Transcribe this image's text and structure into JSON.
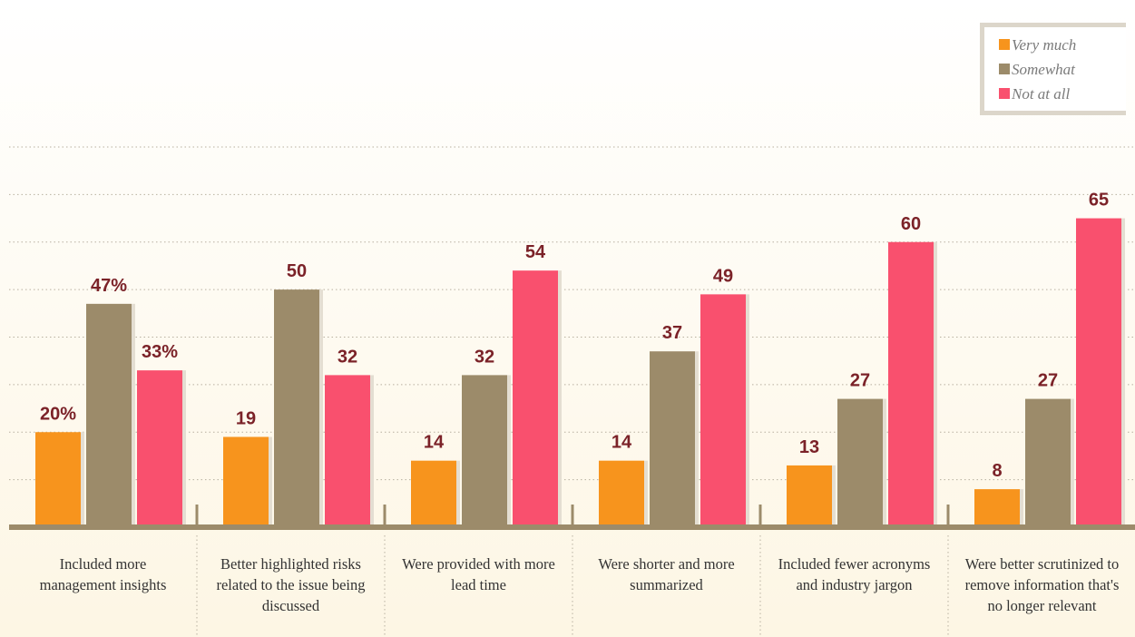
{
  "chart_data": {
    "type": "bar",
    "categories": [
      "Included more management insights",
      "Better highlighted risks related to the issue being discussed",
      "Were provided with more lead time",
      "Were shorter and more summarized",
      "Included fewer acronyms and industry jargon",
      "Were better scrutinized to remove information that's no longer relevant"
    ],
    "series": [
      {
        "name": "Very much",
        "color": "#f7941d",
        "values": [
          20,
          19,
          14,
          14,
          13,
          8
        ],
        "value_labels": [
          "20%",
          "19",
          "14",
          "14",
          "13",
          "8"
        ]
      },
      {
        "name": "Somewhat",
        "color": "#9c8b6a",
        "values": [
          47,
          50,
          32,
          37,
          27,
          27
        ],
        "value_labels": [
          "47%",
          "50",
          "32",
          "37",
          "27",
          "27"
        ]
      },
      {
        "name": "Not at all",
        "color": "#f9506e",
        "values": [
          33,
          32,
          54,
          49,
          60,
          65
        ],
        "value_labels": [
          "33%",
          "32",
          "54",
          "49",
          "60",
          "65"
        ]
      }
    ],
    "ylim": [
      0,
      80
    ],
    "yticks": [
      10,
      20,
      30,
      40,
      50,
      60,
      70,
      80
    ],
    "grid": true,
    "legend": "top-right"
  }
}
